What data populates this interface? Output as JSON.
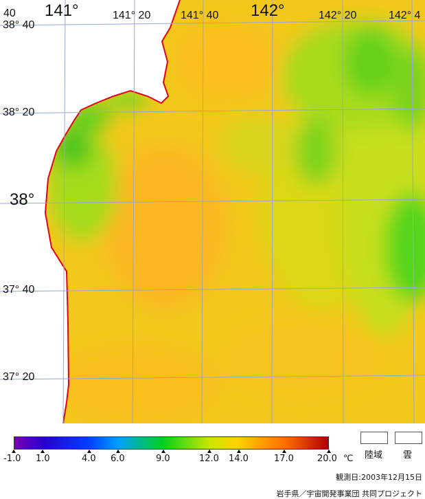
{
  "lon_labels": [
    {
      "text": "40",
      "size": "small"
    },
    {
      "text": "141°",
      "size": "big"
    },
    {
      "text": "141° 20",
      "size": "small"
    },
    {
      "text": "141° 40",
      "size": "small"
    },
    {
      "text": "142°",
      "size": "big"
    },
    {
      "text": "142° 20",
      "size": "small"
    },
    {
      "text": "142° 4",
      "size": "small"
    }
  ],
  "lat_labels": [
    {
      "text": "38° 40",
      "size": "small"
    },
    {
      "text": "38° 20",
      "size": "small"
    },
    {
      "text": "38°",
      "size": "big"
    },
    {
      "text": "37° 40",
      "size": "small"
    },
    {
      "text": "37° 20",
      "size": "small"
    }
  ],
  "legend": {
    "ticks": [
      "-1.0",
      "1.0",
      "4.0",
      "6.0",
      "9.0",
      "12.0",
      "14.0",
      "17.0",
      "20.0"
    ],
    "unit": "℃",
    "land_label": "陸域",
    "cloud_label": "雲",
    "colors": {
      "min": "#7a00b8",
      "c1": "#2a00c8",
      "c4": "#0040ff",
      "c6": "#00a0ff",
      "c9": "#00d020",
      "c12": "#c8e600",
      "c14": "#ffd200",
      "c17": "#ff7000",
      "max": "#b00000"
    }
  },
  "map_colors": {
    "sea_warm": "#fbc21e",
    "sea_mid": "#e6d416",
    "sea_cool": "#b9e01a",
    "sea_green": "#55d61e",
    "coast": "#e4001a",
    "grid": "#9aa6c8",
    "land": "#ffffff"
  },
  "observation_date": "観測日:2003年12月15日",
  "credit": "岩手県／宇宙開発事業団  共同プロジェクト"
}
